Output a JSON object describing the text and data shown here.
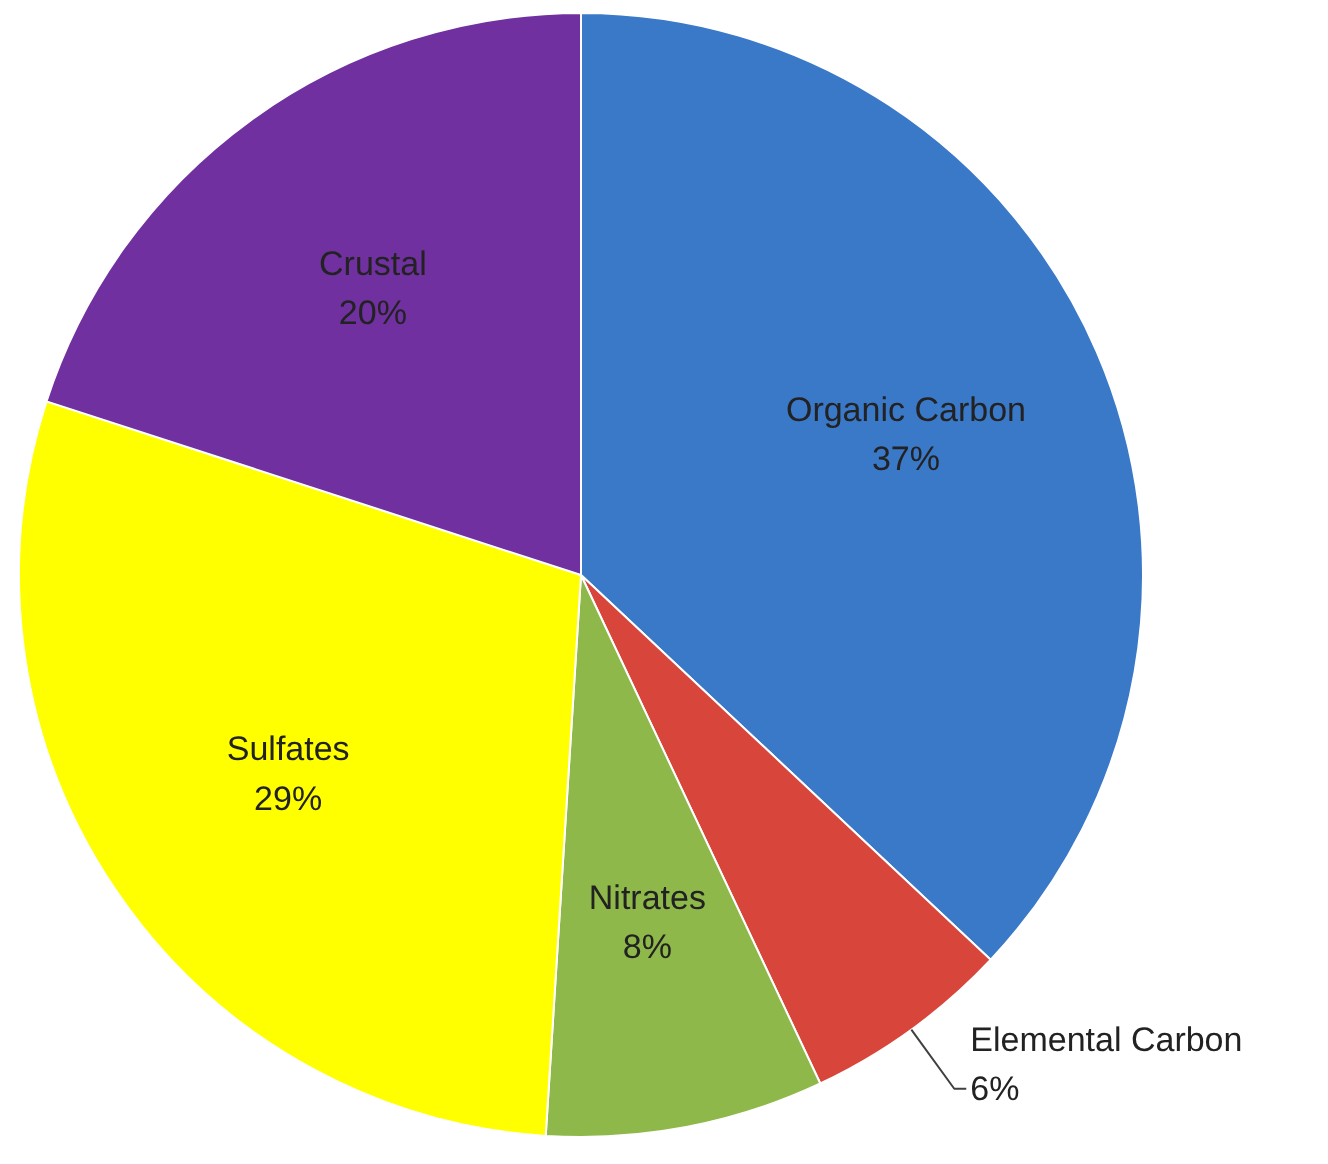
{
  "chart_data": {
    "type": "pie",
    "categories": [
      "Organic Carbon",
      "Elemental Carbon",
      "Nitrates",
      "Sulfates",
      "Crustal"
    ],
    "values": [
      37,
      6,
      8,
      29,
      20
    ],
    "value_labels": [
      "37%",
      "6%",
      "8%",
      "29%",
      "20%"
    ],
    "colors": [
      "#3a78c8",
      "#d8453a",
      "#8fb84a",
      "#ffff00",
      "#7030a0"
    ]
  }
}
